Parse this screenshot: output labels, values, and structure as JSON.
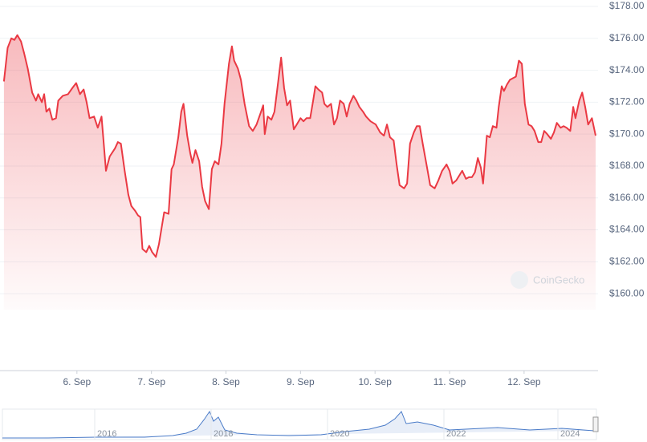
{
  "chart_data": {
    "type": "line",
    "color": "#ea3943",
    "xlim": [
      5,
      12.96
    ],
    "ylim": [
      159,
      178
    ],
    "xticks": [
      {
        "value": 6,
        "label": "6. Sep"
      },
      {
        "value": 7,
        "label": "7. Sep"
      },
      {
        "value": 8,
        "label": "8. Sep"
      },
      {
        "value": 9,
        "label": "9. Sep"
      },
      {
        "value": 10,
        "label": "10. Sep"
      },
      {
        "value": 11,
        "label": "11. Sep"
      },
      {
        "value": 12,
        "label": "12. Sep"
      }
    ],
    "yticks": [
      {
        "value": 160,
        "label": "$160.00"
      },
      {
        "value": 162,
        "label": "$162.00"
      },
      {
        "value": 164,
        "label": "$164.00"
      },
      {
        "value": 166,
        "label": "$166.00"
      },
      {
        "value": 168,
        "label": "$168.00"
      },
      {
        "value": 170,
        "label": "$170.00"
      },
      {
        "value": 172,
        "label": "$172.00"
      },
      {
        "value": 174,
        "label": "$174.00"
      },
      {
        "value": 176,
        "label": "$176.00"
      },
      {
        "value": 178,
        "label": "$178.00"
      }
    ],
    "grid": true,
    "watermark": "CoinGecko",
    "navigator_labels": [
      "2016",
      "2018",
      "2020",
      "2022",
      "2024"
    ],
    "x": [
      5.02,
      5.07,
      5.12,
      5.16,
      5.2,
      5.25,
      5.29,
      5.34,
      5.4,
      5.45,
      5.48,
      5.53,
      5.56,
      5.59,
      5.63,
      5.67,
      5.72,
      5.75,
      5.81,
      5.88,
      5.94,
      5.99,
      6.04,
      6.09,
      6.13,
      6.17,
      6.23,
      6.28,
      6.33,
      6.39,
      6.44,
      6.51,
      6.55,
      6.59,
      6.64,
      6.69,
      6.73,
      6.78,
      6.82,
      6.85,
      6.88,
      6.93,
      6.97,
      7.01,
      7.06,
      7.1,
      7.17,
      7.23,
      7.27,
      7.3,
      7.36,
      7.4,
      7.43,
      7.48,
      7.52,
      7.55,
      7.59,
      7.64,
      7.68,
      7.72,
      7.77,
      7.81,
      7.85,
      7.9,
      7.94,
      7.98,
      8.04,
      8.08,
      8.11,
      8.16,
      8.2,
      8.25,
      8.31,
      8.36,
      8.41,
      8.47,
      8.5,
      8.52,
      8.56,
      8.61,
      8.65,
      8.69,
      8.74,
      8.78,
      8.82,
      8.86,
      8.91,
      8.95,
      9.0,
      9.04,
      9.08,
      9.13,
      9.17,
      9.2,
      9.24,
      9.29,
      9.32,
      9.36,
      9.41,
      9.45,
      9.49,
      9.53,
      9.58,
      9.62,
      9.66,
      9.71,
      9.75,
      9.79,
      9.84,
      9.88,
      9.94,
      10.01,
      10.07,
      10.12,
      10.16,
      10.2,
      10.25,
      10.29,
      10.33,
      10.39,
      10.43,
      10.47,
      10.52,
      10.56,
      10.6,
      10.64,
      10.69,
      10.74,
      10.8,
      10.85,
      10.9,
      10.96,
      11.0,
      11.04,
      11.09,
      11.13,
      11.17,
      11.22,
      11.26,
      11.3,
      11.34,
      11.38,
      11.42,
      11.45,
      11.5,
      11.54,
      11.58,
      11.63,
      11.66,
      11.7,
      11.73,
      11.77,
      11.81,
      11.85,
      11.89,
      11.93,
      11.97,
      12.01,
      12.06,
      12.1,
      12.14,
      12.19,
      12.23,
      12.27,
      12.31,
      12.36,
      12.4,
      12.44,
      12.49,
      12.53,
      12.57,
      12.62,
      12.66,
      12.69,
      12.74,
      12.78,
      12.82,
      12.86,
      12.91,
      12.96
    ],
    "values": [
      173.3,
      175.4,
      176.0,
      175.9,
      176.2,
      175.8,
      175.1,
      174.1,
      172.6,
      172.1,
      172.5,
      172.0,
      172.5,
      171.4,
      171.6,
      170.9,
      171.0,
      172.1,
      172.4,
      172.5,
      172.9,
      173.2,
      172.5,
      172.8,
      172.0,
      171.0,
      171.1,
      170.4,
      171.1,
      167.7,
      168.6,
      169.1,
      169.5,
      169.4,
      167.7,
      166.2,
      165.5,
      165.2,
      164.9,
      164.8,
      162.8,
      162.6,
      163.0,
      162.6,
      162.3,
      163.1,
      165.1,
      165.0,
      167.8,
      168.1,
      169.8,
      171.4,
      171.9,
      169.9,
      168.8,
      168.2,
      169.0,
      168.3,
      166.7,
      165.8,
      165.3,
      167.8,
      168.3,
      168.1,
      169.4,
      171.9,
      174.4,
      175.5,
      174.6,
      174.1,
      173.4,
      171.9,
      170.5,
      170.2,
      170.6,
      171.4,
      171.8,
      170.0,
      171.1,
      170.9,
      171.4,
      172.9,
      174.8,
      172.9,
      171.8,
      172.1,
      170.3,
      170.6,
      171.0,
      170.8,
      171.0,
      171.0,
      172.1,
      173.0,
      172.8,
      172.6,
      171.9,
      171.7,
      171.9,
      170.6,
      171.0,
      172.1,
      171.9,
      171.1,
      171.9,
      172.4,
      172.1,
      171.7,
      171.4,
      171.1,
      170.8,
      170.6,
      170.1,
      169.9,
      170.6,
      169.8,
      169.6,
      168.1,
      166.8,
      166.6,
      166.9,
      169.4,
      170.1,
      170.5,
      170.5,
      169.4,
      168.1,
      166.8,
      166.6,
      167.1,
      167.7,
      168.1,
      167.7,
      166.9,
      167.1,
      167.4,
      167.7,
      167.2,
      167.3,
      167.3,
      167.6,
      168.5,
      167.9,
      166.9,
      169.9,
      169.8,
      170.5,
      170.4,
      171.7,
      173.0,
      172.7,
      173.1,
      173.4,
      173.5,
      173.6,
      174.6,
      174.4,
      171.9,
      170.6,
      170.5,
      170.2,
      169.5,
      169.5,
      170.2,
      170.0,
      169.7,
      170.1,
      170.7,
      170.4,
      170.5,
      170.4,
      170.2,
      171.7,
      171.0,
      172.1,
      172.6,
      171.7,
      170.6,
      171.0,
      169.9
    ]
  }
}
